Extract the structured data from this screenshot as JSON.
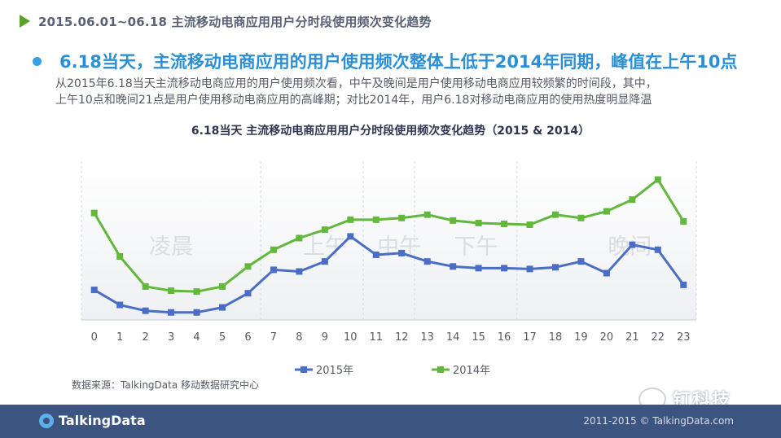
{
  "header": {
    "title": "2015.06.01~06.18 主流移动电商应用用户分时段使用频次变化趋势"
  },
  "headline": "6.18当天，主流移动电商应用的用户使用频次整体上低于2014年同期，峰值在上午10点",
  "description": {
    "line1": "从2015年6.18当天主流移动电商应用的用户使用频次看，中午及晚间是用户使用移动电商应用较频繁的时间段，其中，",
    "line2": "上午10点和晚间21点是用户使用移动电商应用的高峰期；对比2014年，用户6.18对移动电商应用的使用热度明显降温"
  },
  "chart_data": {
    "type": "line",
    "title": "6.18当天 主流移动电商应用用户分时段使用频次变化趋势（2015 & 2014）",
    "categories": [
      "0",
      "1",
      "2",
      "3",
      "4",
      "5",
      "6",
      "7",
      "8",
      "9",
      "10",
      "11",
      "12",
      "13",
      "14",
      "15",
      "16",
      "17",
      "18",
      "19",
      "20",
      "21",
      "22",
      "23"
    ],
    "series": [
      {
        "name": "2015年",
        "color": "#4a6ec5",
        "values": [
          18,
          9,
          5.5,
          4.5,
          4.5,
          7.5,
          16,
          30,
          29,
          35,
          50,
          39,
          40,
          35,
          32,
          31,
          31,
          30.5,
          31.5,
          35,
          28,
          45,
          42,
          21
        ]
      },
      {
        "name": "2014年",
        "color": "#62b83b",
        "values": [
          64,
          38,
          20,
          17.5,
          17,
          20,
          32,
          42,
          49,
          54,
          60,
          60,
          61,
          63,
          59.5,
          58,
          57.5,
          57,
          63,
          61,
          65,
          72,
          84,
          59
        ]
      }
    ],
    "ylim": [
      0,
      95
    ],
    "period_labels": [
      {
        "text": "凌晨",
        "x": 3
      },
      {
        "text": "上午",
        "x": 9
      },
      {
        "text": "中午",
        "x": 11.9
      },
      {
        "text": "下午",
        "x": 14.9
      },
      {
        "text": "晚间",
        "x": 20.9
      }
    ],
    "grid": "vertical"
  },
  "source": "数据来源：TalkingData 移动数据研究中心",
  "footer": {
    "logo": "TalkingData",
    "copyright": "2011-2015 © TalkingData.com"
  },
  "watermark": "钉科技"
}
